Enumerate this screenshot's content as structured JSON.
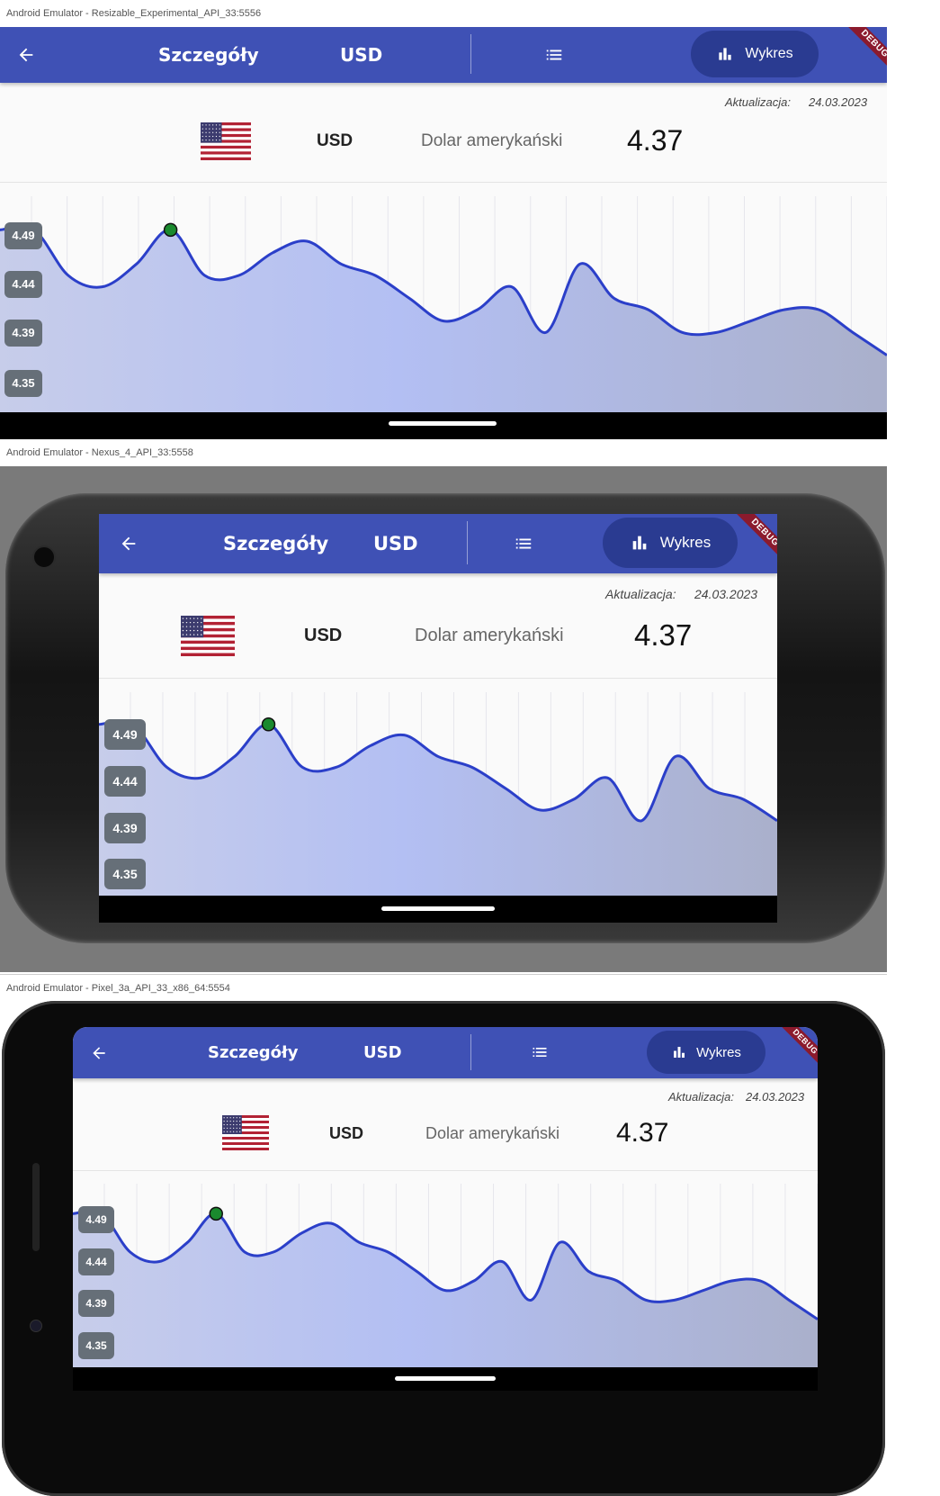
{
  "emulators": [
    {
      "window_title": "Android Emulator - Resizable_Experimental_API_33:5556"
    },
    {
      "window_title": "Android Emulator - Nexus_4_API_33:5558"
    },
    {
      "window_title": "Android Emulator - Pixel_3a_API_33_x86_64:5554"
    }
  ],
  "app": {
    "title": "Szczegóły",
    "currency_code": "USD",
    "chart_button_label": "Wykres",
    "debug_label": "DEBUG",
    "update_label": "Aktualizacja:",
    "update_date": "24.03.2023",
    "currency_name": "Dolar amerykański",
    "rate": "4.37",
    "icons": {
      "back": "arrow-left-icon",
      "list": "list-icon",
      "chart": "bar-chart-icon",
      "flag": "us-flag-icon"
    }
  },
  "colors": {
    "appbar": "#3f51b5",
    "chart_button": "#2a3b91",
    "line": "#2b3fc9",
    "highlight_point": "#1a8a2e",
    "debug_ribbon": "#8b1a2d"
  },
  "chart_data": {
    "type": "area",
    "y_tick_labels": [
      "4.49",
      "4.44",
      "4.39",
      "4.35"
    ],
    "ylim": [
      4.33,
      4.51
    ],
    "values": [
      4.49,
      4.49,
      4.45,
      4.44,
      4.46,
      4.49,
      4.45,
      4.45,
      4.47,
      4.48,
      4.46,
      4.45,
      4.43,
      4.41,
      4.42,
      4.44,
      4.4,
      4.46,
      4.43,
      4.42,
      4.4,
      4.4,
      4.41,
      4.42,
      4.42,
      4.4,
      4.38
    ],
    "highlight_index": 5,
    "grid": "vertical"
  }
}
